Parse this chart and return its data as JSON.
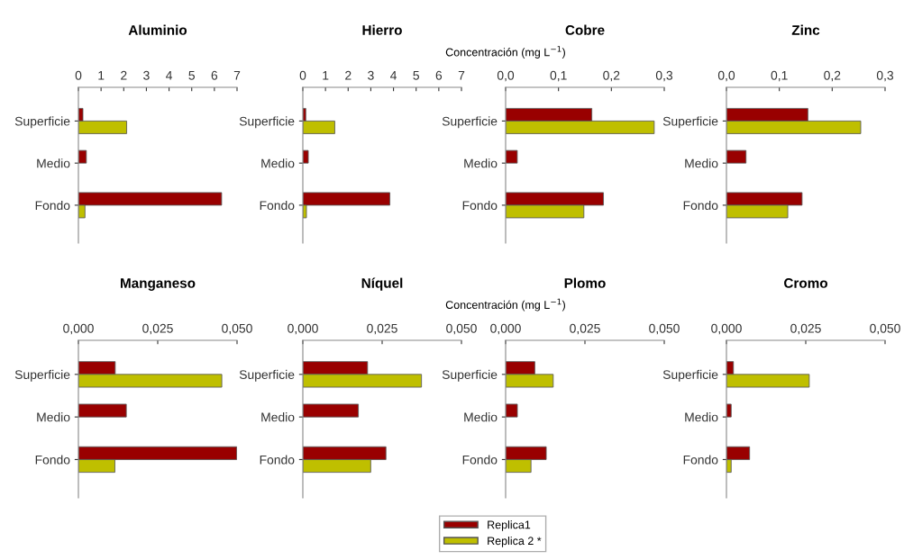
{
  "chart_data": [
    {
      "type": "bar",
      "orientation": "horizontal",
      "title": "Aluminio",
      "categories": [
        "Superficie",
        "Medio",
        "Fondo"
      ],
      "xlim": [
        0,
        7
      ],
      "xticks": [
        0,
        1,
        2,
        3,
        4,
        5,
        6,
        7
      ],
      "legend": "bottom",
      "series": [
        {
          "name": "Replica1",
          "color": "#990000",
          "values": [
            0.2,
            0.35,
            6.32
          ]
        },
        {
          "name": "Replica 2 *",
          "color": "#bfbf00",
          "values": [
            2.13,
            null,
            0.29
          ]
        }
      ]
    },
    {
      "type": "bar",
      "orientation": "horizontal",
      "title": "Hierro",
      "categories": [
        "Superficie",
        "Medio",
        "Fondo"
      ],
      "xlim": [
        0,
        7
      ],
      "xticks": [
        0,
        1,
        2,
        3,
        4,
        5,
        6,
        7
      ],
      "series": [
        {
          "color": "#990000",
          "values": [
            0.13,
            0.24,
            3.84
          ]
        },
        {
          "color": "#bfbf00",
          "values": [
            1.41,
            null,
            0.16
          ]
        }
      ]
    },
    {
      "type": "bar",
      "orientation": "horizontal",
      "title": "Cobre",
      "xlabel": "Concentración (mg L$^{−1}$)",
      "categories": [
        "Superficie",
        "Medio",
        "Fondo"
      ],
      "xlim": [
        0,
        0.3
      ],
      "xticks": [
        {
          "value": 0,
          "label": "0,0"
        },
        {
          "value": 0.1,
          "label": "0,1"
        },
        {
          "value": 0.2,
          "label": "0,2"
        },
        {
          "value": 0.3,
          "label": "0,3"
        }
      ],
      "series": [
        {
          "color": "#990000",
          "values": [
            0.163,
            0.022,
            0.185
          ]
        },
        {
          "color": "#bfbf00",
          "values": [
            0.281,
            null,
            0.148
          ]
        }
      ]
    },
    {
      "type": "bar",
      "orientation": "horizontal",
      "title": "Zinc",
      "categories": [
        "Superficie",
        "Medio",
        "Fondo"
      ],
      "xlim": [
        0,
        0.3
      ],
      "xticks": [
        {
          "value": 0,
          "label": "0,0"
        },
        {
          "value": 0.1,
          "label": "0,1"
        },
        {
          "value": 0.2,
          "label": "0,2"
        },
        {
          "value": 0.3,
          "label": "0,3"
        }
      ],
      "series": [
        {
          "color": "#990000",
          "values": [
            0.154,
            0.037,
            0.143
          ]
        },
        {
          "color": "#bfbf00",
          "values": [
            0.254,
            null,
            0.116
          ]
        }
      ]
    },
    {
      "type": "bar",
      "orientation": "horizontal",
      "title": "Manganeso",
      "categories": [
        "Superficie",
        "Medio",
        "Fondo"
      ],
      "xlim": [
        0,
        0.05
      ],
      "xticks": [
        {
          "value": 0,
          "label": "0,000"
        },
        {
          "value": 0.025,
          "label": "0,025"
        },
        {
          "value": 0.05,
          "label": "0,050"
        }
      ],
      "series": [
        {
          "color": "#990000",
          "values": [
            0.0116,
            0.0151,
            0.0499
          ]
        },
        {
          "color": "#bfbf00",
          "values": [
            0.0452,
            null,
            0.0115
          ]
        }
      ]
    },
    {
      "type": "bar",
      "orientation": "horizontal",
      "title": "Níquel",
      "categories": [
        "Superficie",
        "Medio",
        "Fondo"
      ],
      "xlim": [
        0,
        0.05
      ],
      "xticks": [
        {
          "value": 0,
          "label": "0,000"
        },
        {
          "value": 0.025,
          "label": "0,025"
        },
        {
          "value": 0.05,
          "label": "0,050"
        }
      ],
      "series": [
        {
          "color": "#990000",
          "values": [
            0.0204,
            0.0175,
            0.0262
          ]
        },
        {
          "color": "#bfbf00",
          "values": [
            0.0374,
            null,
            0.0214
          ]
        }
      ]
    },
    {
      "type": "bar",
      "orientation": "horizontal",
      "title": "Plomo",
      "xlabel": "Concentración (mg L$^{−1}$)",
      "categories": [
        "Superficie",
        "Medio",
        "Fondo"
      ],
      "xlim": [
        0,
        0.05
      ],
      "xticks": [
        {
          "value": 0,
          "label": "0,000"
        },
        {
          "value": 0.025,
          "label": "0,025"
        },
        {
          "value": 0.05,
          "label": "0,050"
        }
      ],
      "series": [
        {
          "color": "#990000",
          "values": [
            0.0092,
            0.0037,
            0.0128
          ]
        },
        {
          "color": "#bfbf00",
          "values": [
            0.015,
            null,
            0.008
          ]
        }
      ]
    },
    {
      "type": "bar",
      "orientation": "horizontal",
      "title": "Cromo",
      "categories": [
        "Superficie",
        "Medio",
        "Fondo"
      ],
      "xlim": [
        0,
        0.05
      ],
      "xticks": [
        {
          "value": 0,
          "label": "0,000"
        },
        {
          "value": 0.025,
          "label": "0,025"
        },
        {
          "value": 0.05,
          "label": "0,050"
        }
      ],
      "series": [
        {
          "color": "#990000",
          "values": [
            0.0022,
            0.0015,
            0.0073
          ]
        },
        {
          "color": "#bfbf00",
          "values": [
            0.0261,
            null,
            0.0015
          ]
        }
      ]
    }
  ]
}
